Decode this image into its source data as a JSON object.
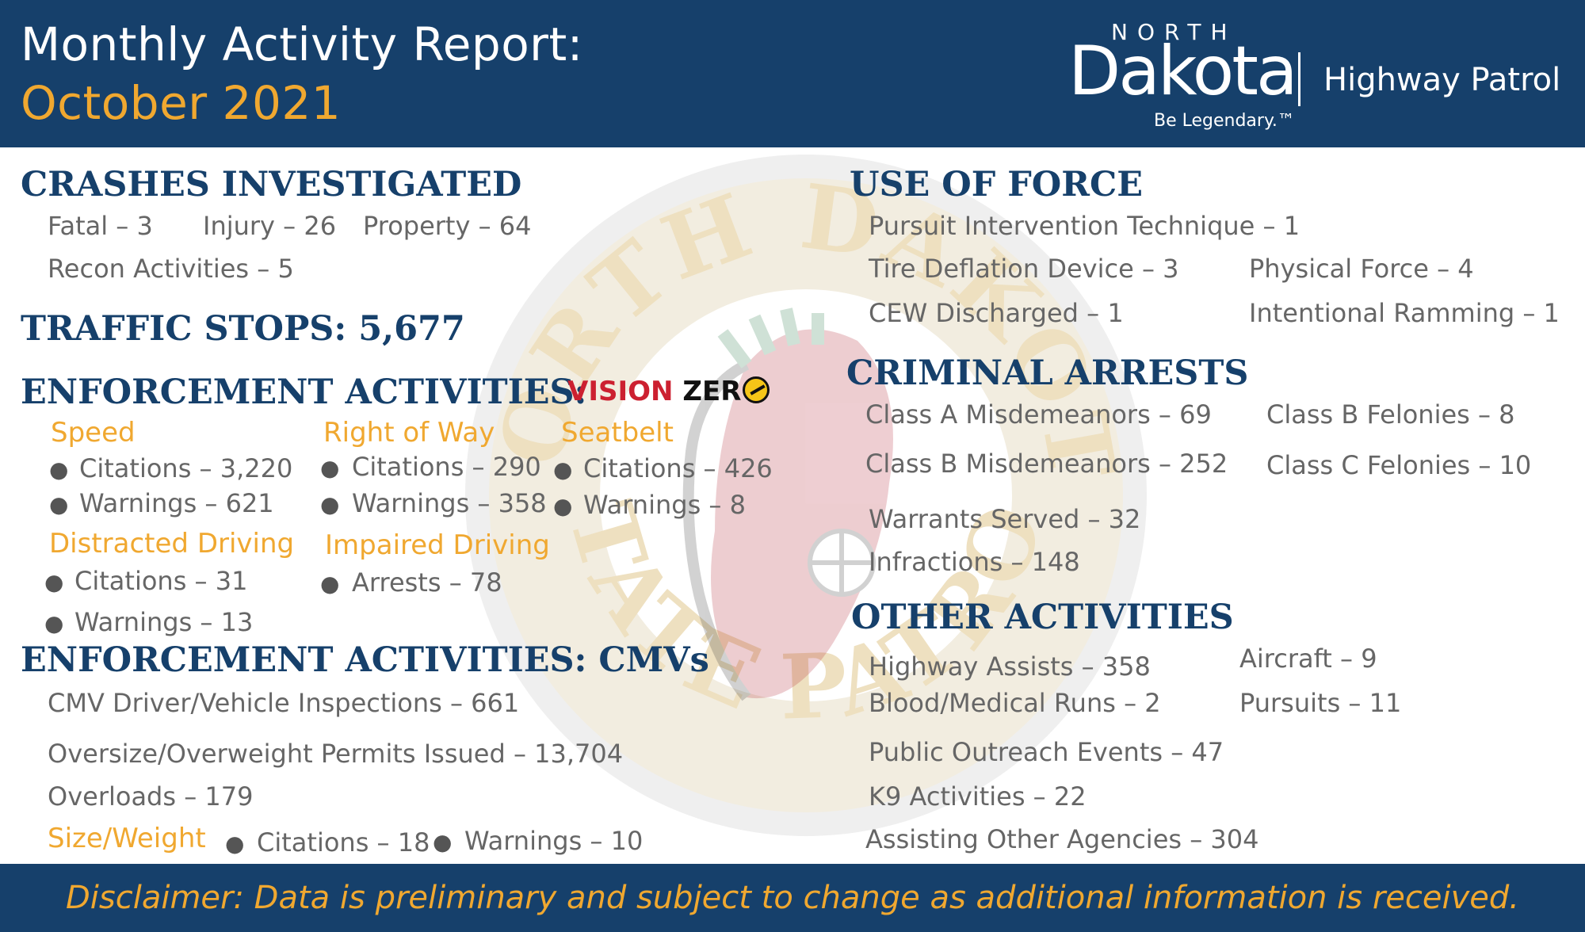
{
  "header": {
    "title_line1": "Monthly Activity Report:",
    "title_line2": "October 2021",
    "logo_north": "NORTH",
    "logo_dakota": "Dakota",
    "logo_tagline": "Be Legendary.™",
    "logo_agency": "Highway Patrol"
  },
  "seal": {
    "ring_top": "NORTH DAKOTA",
    "ring_bottom": "STATE PATROL"
  },
  "crashes": {
    "heading": "CRASHES INVESTIGATED",
    "fatal": "Fatal – 3",
    "injury": "Injury – 26",
    "property": "Property – 64",
    "recon": "Recon Activities – 5"
  },
  "traffic_stops": {
    "heading": "TRAFFIC STOPS: 5,677"
  },
  "enforcement": {
    "heading": "ENFORCEMENT ACTIVITIES:",
    "vision_zero_a": "VISION",
    "vision_zero_b": "ZER",
    "speed": {
      "label": "Speed",
      "citations": "Citations – 3,220",
      "warnings": "Warnings – 621"
    },
    "right_of_way": {
      "label": "Right of Way",
      "citations": "Citations – 290",
      "warnings": "Warnings – 358"
    },
    "seatbelt": {
      "label": "Seatbelt",
      "citations": "Citations – 426",
      "warnings": "Warnings – 8"
    },
    "distracted": {
      "label": "Distracted Driving",
      "citations": "Citations – 31",
      "warnings": "Warnings – 13"
    },
    "impaired": {
      "label": "Impaired Driving",
      "arrests": "Arrests – 78"
    }
  },
  "cmv": {
    "heading": "ENFORCEMENT ACTIVITIES: CMVs",
    "inspections": "CMV Driver/Vehicle Inspections – 661",
    "permits": "Oversize/Overweight Permits Issued – 13,704",
    "overloads": "Overloads – 179",
    "size_weight_label": "Size/Weight",
    "size_weight_citations": "Citations – 18",
    "size_weight_warnings": "Warnings – 10"
  },
  "use_of_force": {
    "heading": "USE OF FORCE",
    "pit": "Pursuit Intervention Technique – 1",
    "tire": "Tire Deflation Device – 3",
    "physical": "Physical Force – 4",
    "cew": "CEW Discharged – 1",
    "ramming": "Intentional Ramming – 1"
  },
  "criminal": {
    "heading": "CRIMINAL ARRESTS",
    "class_a_misd": "Class A Misdemeanors – 69",
    "class_b_fel": "Class B Felonies – 8",
    "class_b_misd": "Class B Misdemeanors – 252",
    "class_c_fel": "Class C Felonies – 10",
    "warrants": "Warrants Served – 32",
    "infractions": "Infractions – 148"
  },
  "other": {
    "heading": "OTHER ACTIVITIES",
    "highway_assists": "Highway Assists – 358",
    "aircraft": "Aircraft – 9",
    "blood_runs": "Blood/Medical Runs – 2",
    "pursuits": "Pursuits – 11",
    "outreach": "Public Outreach Events –  47",
    "k9": "K9 Activities – 22",
    "assisting": "Assisting Other Agencies – 304"
  },
  "footer": {
    "disclaimer": "Disclaimer: Data is preliminary and subject to change as additional information is received."
  },
  "colors": {
    "navy": "#16406b",
    "gold": "#f0a830",
    "text_gray": "#666666"
  }
}
